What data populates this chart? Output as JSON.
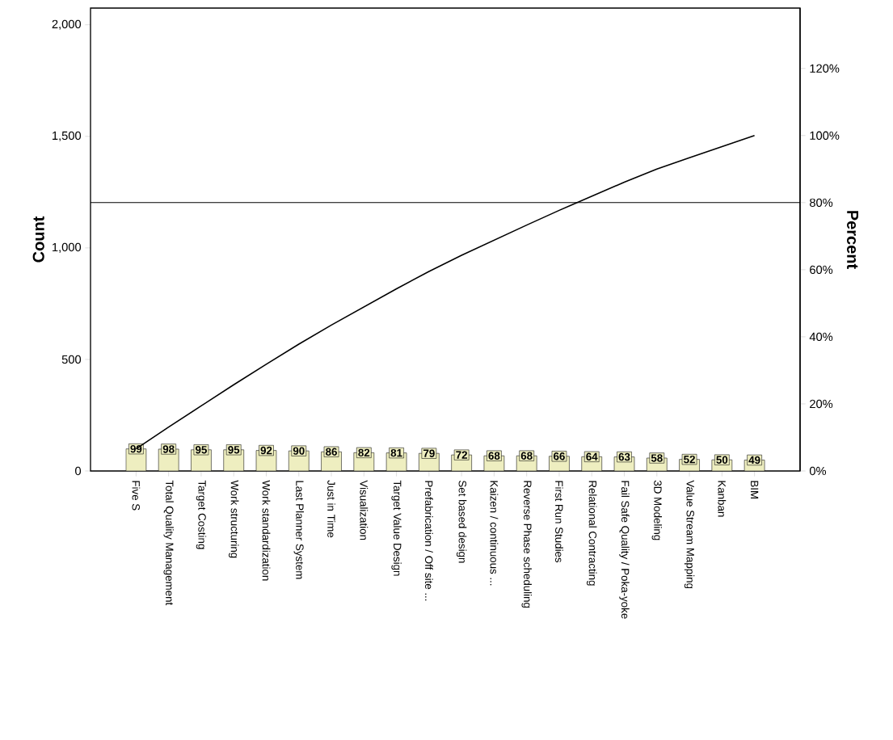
{
  "chart_data": {
    "type": "bar",
    "ylabel": "Count",
    "y2label": "Percent",
    "categories": [
      "Five S",
      "Total Quality Management",
      "Target Costing",
      "Work structuring",
      "Work standardization",
      "Last Planner System",
      "Just in Time",
      "Visualization",
      "Target Value Design",
      "Prefabrication / Off site ...",
      "Set based design",
      "Kaizen / continuous ...",
      "Reverse Phase scheduling",
      "First Run Studies",
      "Relational Contracting",
      "Fail Safe Quality / Poka-yoke",
      "3D Modeling",
      "Value Stream Mapping",
      "Kanban",
      "BIM"
    ],
    "series": [
      {
        "color": "#eeeec0",
        "values": [
          99,
          98,
          95,
          95,
          92,
          90,
          86,
          82,
          81,
          79,
          72,
          68,
          68,
          66,
          64,
          63,
          58,
          52,
          50,
          49
        ],
        "value_labels": [
          "99",
          "98",
          "95",
          "95",
          "92",
          "90",
          "86",
          "82",
          "81",
          "79",
          "72",
          "68",
          "68",
          "66",
          "64",
          "63",
          "58",
          "52",
          "50",
          "49"
        ]
      },
      {
        "type": "line",
        "axis": "y2",
        "color": "#000000",
        "values": [
          6.6,
          13.1,
          19.4,
          25.7,
          31.8,
          37.8,
          43.5,
          48.9,
          54.3,
          59.5,
          64.3,
          68.8,
          73.3,
          77.7,
          81.9,
          86.1,
          90.0,
          93.4,
          96.7,
          100
        ]
      }
    ],
    "ylim": [
      0,
      2075
    ],
    "yticks": [
      0,
      500,
      {
        "value": 1000,
        "label": "1,000"
      },
      {
        "value": 1500,
        "label": "1,500"
      },
      {
        "value": 2000,
        "label": "2,000"
      }
    ],
    "y2lim": [
      0,
      138
    ],
    "y2ticks": [
      {
        "value": 0,
        "label": "0%"
      },
      {
        "value": 20,
        "label": "20%"
      },
      {
        "value": 40,
        "label": "40%"
      },
      {
        "value": 60,
        "label": "60%"
      },
      {
        "value": 80,
        "label": "80%"
      },
      {
        "value": 100,
        "label": "100%"
      },
      {
        "value": 120,
        "label": "120%"
      }
    ],
    "ref_lines": [
      {
        "axis": "y2",
        "value": 80,
        "color": "#000000"
      }
    ]
  }
}
